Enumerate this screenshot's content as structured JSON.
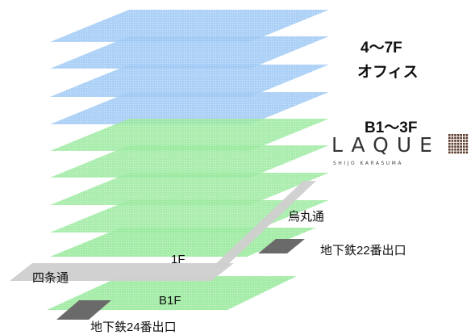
{
  "labels": {
    "upper_floors": "4〜7F",
    "office": "オフィス",
    "lower_floors": "B1〜3F",
    "logo_text": "LAQUE",
    "logo_subtext": "SHIJO KARASUMA",
    "road_karasuma": "烏丸通",
    "road_shijo": "四条通",
    "floor_1f": "1F",
    "floor_b1f": "B1F",
    "exit_22": "地下鉄22番出口",
    "exit_24": "地下鉄24番出口"
  },
  "colors": {
    "office_floor": "#9ec9f5",
    "commercial_floor": "#9ee89e",
    "road": "#cfcfcf",
    "exit": "#6a6a6a"
  }
}
